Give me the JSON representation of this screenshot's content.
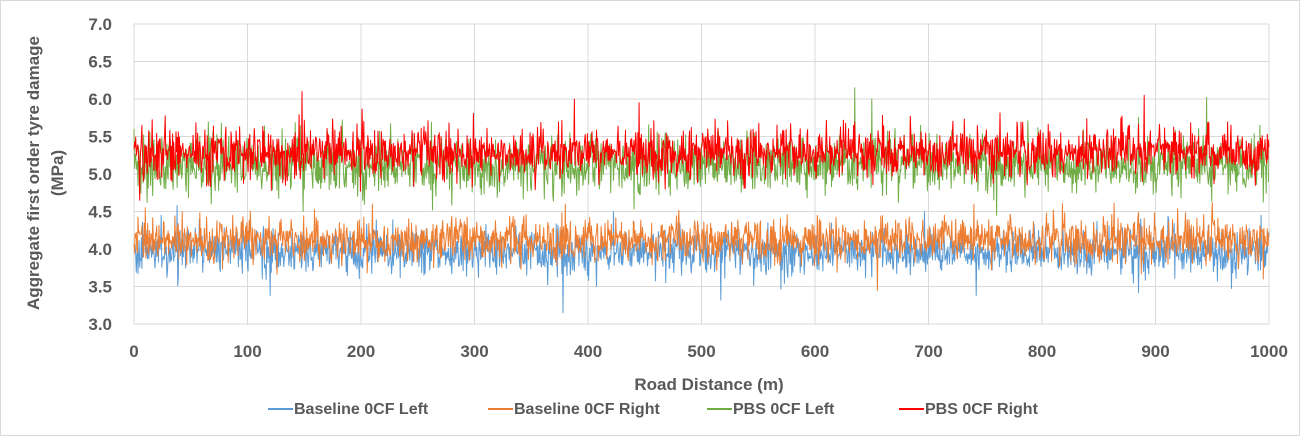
{
  "chart_data": {
    "type": "line",
    "title": "",
    "xlabel": "Road Distance (m)",
    "ylabel_line1": "Aggregate first order tyre damage",
    "ylabel_line2": "(MPa)",
    "xlim": [
      0,
      1000
    ],
    "ylim": [
      3.0,
      7.0
    ],
    "x_ticks": [
      "0",
      "100",
      "200",
      "300",
      "400",
      "500",
      "600",
      "700",
      "800",
      "900",
      "1000"
    ],
    "y_ticks": [
      "3.0",
      "3.5",
      "4.0",
      "4.5",
      "5.0",
      "5.5",
      "6.0",
      "6.5",
      "7.0"
    ],
    "grid": "vertical and horizontal major gridlines",
    "legend_position": "bottom",
    "sample_spacing_m": 0.5,
    "series": [
      {
        "name": "Baseline 0CF Left",
        "color": "#5b9bd5",
        "mean": 3.97,
        "spread": 0.17,
        "min": 3.15,
        "max": 4.58,
        "extremes": [
          [
            24,
            4.45
          ],
          [
            38,
            4.58
          ],
          [
            120,
            3.38
          ],
          [
            378,
            3.15
          ],
          [
            517,
            3.32
          ],
          [
            742,
            3.38
          ],
          [
            885,
            3.42
          ],
          [
            993,
            4.45
          ]
        ]
      },
      {
        "name": "Baseline 0CF Right",
        "color": "#ed7d31",
        "mean": 4.12,
        "spread": 0.17,
        "min": 3.45,
        "max": 4.8,
        "extremes": [
          [
            10,
            4.55
          ],
          [
            210,
            4.6
          ],
          [
            380,
            4.6
          ],
          [
            655,
            3.45
          ],
          [
            740,
            4.6
          ],
          [
            995,
            3.6
          ]
        ]
      },
      {
        "name": "PBS 0CF Left",
        "color": "#70ad47",
        "mean": 5.12,
        "spread": 0.22,
        "min": 4.45,
        "max": 6.15,
        "extremes": [
          [
            0,
            5.6
          ],
          [
            68,
            4.6
          ],
          [
            635,
            6.15
          ],
          [
            650,
            6.0
          ],
          [
            760,
            4.45
          ],
          [
            945,
            6.02
          ],
          [
            992,
            5.65
          ]
        ]
      },
      {
        "name": "PBS 0CF Right",
        "color": "#ff0000",
        "mean": 5.28,
        "spread": 0.2,
        "min": 4.6,
        "max": 6.1,
        "extremes": [
          [
            5,
            4.65
          ],
          [
            148,
            6.1
          ],
          [
            388,
            6.0
          ],
          [
            445,
            5.95
          ],
          [
            890,
            6.05
          ],
          [
            988,
            4.85
          ]
        ]
      }
    ]
  }
}
